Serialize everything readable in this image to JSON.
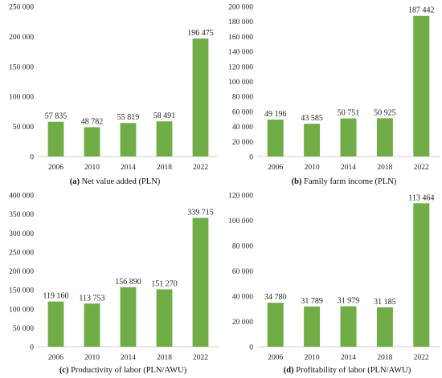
{
  "colors": {
    "bar": "#70ad47",
    "axis": "#cfcfcf",
    "text": "#222222"
  },
  "chart_data": [
    {
      "type": "bar",
      "caption_letter": "(a)",
      "caption_text": " Net value added (PLN)",
      "categories": [
        "2006",
        "2010",
        "2014",
        "2018",
        "2022"
      ],
      "values": [
        57835,
        48782,
        55819,
        58491,
        196475
      ],
      "value_labels": [
        "57 835",
        "48 782",
        "55 819",
        "58 491",
        "196 475"
      ],
      "ylim": [
        0,
        250000
      ],
      "yticks": [
        0,
        50000,
        100000,
        150000,
        200000,
        250000
      ],
      "ytick_labels": [
        "0",
        "50 000",
        "100 000",
        "150 000",
        "200 000",
        "250 000"
      ],
      "grid": false
    },
    {
      "type": "bar",
      "caption_letter": "(b)",
      "caption_text": " Family farm income (PLN)",
      "categories": [
        "2006",
        "2010",
        "2014",
        "2018",
        "2022"
      ],
      "values": [
        49196,
        43585,
        50751,
        50925,
        187442
      ],
      "value_labels": [
        "49 196",
        "43 585",
        "50 751",
        "50 925",
        "187 442"
      ],
      "ylim": [
        0,
        200000
      ],
      "yticks": [
        0,
        20000,
        40000,
        60000,
        80000,
        100000,
        120000,
        140000,
        160000,
        180000,
        200000
      ],
      "ytick_labels": [
        "0",
        "20 000",
        "40 000",
        "60 000",
        "80 000",
        "100 000",
        "120 000",
        "140 000",
        "160 000",
        "180 000",
        "200 000"
      ],
      "grid": false
    },
    {
      "type": "bar",
      "caption_letter": "(c)",
      "caption_text": " Productivity of labor (PLN/AWU)",
      "categories": [
        "2006",
        "2010",
        "2014",
        "2018",
        "2022"
      ],
      "values": [
        119160,
        113753,
        156890,
        151270,
        339715
      ],
      "value_labels": [
        "119 160",
        "113 753",
        "156 890",
        "151 270",
        "339 715"
      ],
      "ylim": [
        0,
        400000
      ],
      "yticks": [
        0,
        50000,
        100000,
        150000,
        200000,
        250000,
        300000,
        350000,
        400000
      ],
      "ytick_labels": [
        "0",
        "50 000",
        "100 000",
        "150 000",
        "200 000",
        "250 000",
        "300 000",
        "350 000",
        "400 000"
      ],
      "grid": false
    },
    {
      "type": "bar",
      "caption_letter": "(d)",
      "caption_text": " Profitability of labor (PLN/AWU)",
      "categories": [
        "2006",
        "2010",
        "2014",
        "2018",
        "2022"
      ],
      "values": [
        34780,
        31789,
        31979,
        31185,
        113464
      ],
      "value_labels": [
        "34 780",
        "31 789",
        "31 979",
        "31 185",
        "113 464"
      ],
      "ylim": [
        0,
        120000
      ],
      "yticks": [
        0,
        20000,
        40000,
        60000,
        80000,
        100000,
        120000
      ],
      "ytick_labels": [
        "0",
        "20 000",
        "40 000",
        "60 000",
        "80 000",
        "100 000",
        "120 000"
      ],
      "grid": false
    }
  ]
}
